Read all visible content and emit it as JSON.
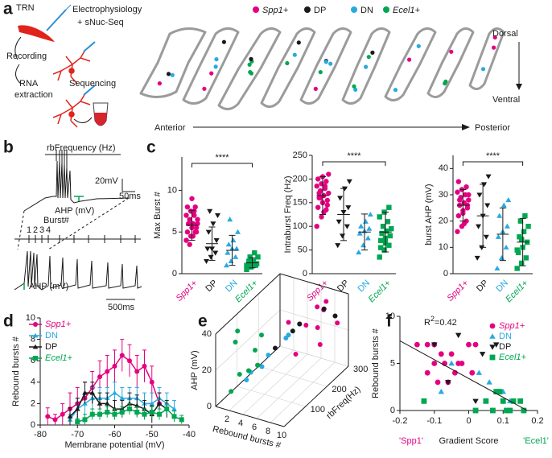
{
  "panel_labels": [
    "a",
    "b",
    "c",
    "d",
    "e",
    "f"
  ],
  "schematic": {
    "trn": "TRN",
    "ephys": "Electrophysiology",
    "snuc": "+ sNuc-Seq",
    "recording": "Recording",
    "rna": "RNA",
    "extraction": "extraction",
    "sequencing": "Sequencing"
  },
  "slices": {
    "legend": [
      {
        "name": "Spp1+",
        "color": "#e4007f",
        "italic": true
      },
      {
        "name": "DP",
        "color": "#1a1a1a",
        "italic": false
      },
      {
        "name": "DN",
        "color": "#29a9e1",
        "italic": false
      },
      {
        "name": "Ecel1+",
        "color": "#00a651",
        "italic": true
      }
    ],
    "dorsal": "Dorsal",
    "ventral": "Ventral",
    "anterior": "Anterior",
    "posterior": "Posterior"
  },
  "traces": {
    "rb_frequency": "rbFrequency (Hz)",
    "scale_mv": "20mV",
    "scale_ms": "50ms",
    "ahp_top": "AHP (mV)",
    "burst": "Burst#",
    "burst_numbers": [
      "1",
      "2",
      "3",
      "4"
    ],
    "ahp_bottom": "AHP (mV)",
    "scale_long": "500ms"
  },
  "chart_data": [
    {
      "type": "dotplot",
      "ylabel": "Max Burst #",
      "ylim": [
        0,
        14
      ],
      "yticks": [
        0,
        5,
        10
      ],
      "significance": "****",
      "series": [
        {
          "name": "Spp1+",
          "color": "#e4007f",
          "marker": "circle",
          "italic": true,
          "values": [
            4,
            4.5,
            5,
            5,
            5.5,
            5.5,
            6,
            6,
            6,
            6.5,
            7,
            7,
            7.5,
            8,
            8,
            9,
            5,
            6,
            4.5,
            6.5,
            3.5,
            7.5
          ],
          "mean": 5.8,
          "sd": 1.8
        },
        {
          "name": "DP",
          "color": "#1a1a1a",
          "marker": "triangle-down",
          "italic": false,
          "values": [
            1.5,
            2,
            2.5,
            3,
            3,
            4,
            5,
            6,
            7,
            7.5
          ],
          "mean": 3.6,
          "sd": 2
        },
        {
          "name": "DN",
          "color": "#29a9e1",
          "marker": "triangle-up",
          "italic": false,
          "values": [
            1,
            1.5,
            2,
            2.5,
            3,
            3,
            3.5,
            4,
            5,
            6.5
          ],
          "mean": 2.8,
          "sd": 1.8
        },
        {
          "name": "Ecel1+",
          "color": "#00a651",
          "marker": "square",
          "italic": true,
          "values": [
            0.5,
            0.8,
            1,
            1,
            1,
            1.2,
            1.5,
            1.5,
            2,
            2,
            2.5,
            1,
            1.3
          ],
          "mean": 1.3,
          "sd": 0.6
        }
      ]
    },
    {
      "type": "dotplot",
      "ylabel": "Intraburst Freq (Hz)",
      "ylim": [
        0,
        250
      ],
      "yticks": [
        0,
        50,
        100,
        150,
        200,
        250
      ],
      "significance": "****",
      "series": [
        {
          "name": "Spp1+",
          "color": "#e4007f",
          "marker": "circle",
          "italic": true,
          "values": [
            100,
            120,
            135,
            140,
            150,
            155,
            160,
            165,
            170,
            175,
            180,
            185,
            190,
            195,
            200,
            205,
            145,
            170,
            130,
            210,
            160,
            185
          ],
          "mean": 165,
          "sd": 40
        },
        {
          "name": "DP",
          "color": "#1a1a1a",
          "marker": "triangle-down",
          "italic": false,
          "values": [
            60,
            80,
            100,
            110,
            130,
            140,
            160,
            180,
            195
          ],
          "mean": 125,
          "sd": 55
        },
        {
          "name": "DN",
          "color": "#29a9e1",
          "marker": "triangle-up",
          "italic": false,
          "values": [
            45,
            60,
            75,
            85,
            90,
            95,
            100,
            110,
            125
          ],
          "mean": 88,
          "sd": 38
        },
        {
          "name": "Ecel1+",
          "color": "#00a651",
          "marker": "square",
          "italic": true,
          "values": [
            35,
            50,
            60,
            70,
            75,
            80,
            85,
            90,
            95,
            100,
            110,
            120,
            130,
            140,
            55,
            65
          ],
          "mean": 88,
          "sd": 42
        }
      ]
    },
    {
      "type": "dotplot",
      "ylabel": "burst AHP (mV)",
      "ylim": [
        0,
        45
      ],
      "yticks": [
        0,
        10,
        20,
        30,
        40
      ],
      "significance": "****",
      "series": [
        {
          "name": "Spp1+",
          "color": "#e4007f",
          "marker": "circle",
          "italic": true,
          "values": [
            16,
            18,
            20,
            22,
            24,
            25,
            26,
            27,
            28,
            29,
            30,
            31,
            32,
            33,
            35,
            23,
            26,
            28,
            19,
            30
          ],
          "mean": 26,
          "sd": 6
        },
        {
          "name": "DP",
          "color": "#1a1a1a",
          "marker": "triangle-down",
          "italic": false,
          "values": [
            6,
            10,
            14,
            18,
            22,
            26,
            30,
            34,
            37
          ],
          "mean": 22,
          "sd": 12
        },
        {
          "name": "DN",
          "color": "#29a9e1",
          "marker": "triangle-up",
          "italic": false,
          "values": [
            2,
            6,
            10,
            14,
            16,
            18,
            22,
            26,
            28
          ],
          "mean": 15,
          "sd": 10
        },
        {
          "name": "Ecel1+",
          "color": "#00a651",
          "marker": "square",
          "italic": true,
          "values": [
            2,
            4,
            6,
            8,
            10,
            12,
            14,
            16,
            18,
            20,
            22,
            9,
            13
          ],
          "mean": 12,
          "sd": 9
        }
      ]
    },
    {
      "type": "line",
      "xlabel": "Membrane potential (mV)",
      "ylabel": "Rebound bursts #",
      "x": [
        -78,
        -76,
        -74,
        -72,
        -70,
        -68,
        -66,
        -64,
        -62,
        -60,
        -58,
        -56,
        -54,
        -52,
        -50,
        -48,
        -46,
        -44,
        -42
      ],
      "xlim": [
        -80,
        -40
      ],
      "xticks": [
        -80,
        -70,
        -60,
        -50,
        -40
      ],
      "ylim": [
        0,
        10
      ],
      "yticks": [
        0,
        2,
        4,
        6,
        8,
        10
      ],
      "legend": "upper left",
      "series": [
        {
          "name": "Spp1+",
          "color": "#e4007f",
          "marker": "circle",
          "italic": true,
          "values": [
            0.8,
            0.5,
            1.0,
            1.5,
            2.0,
            2.5,
            3.5,
            4.5,
            5.0,
            5.5,
            6.5,
            6.0,
            5.0,
            5.5,
            4.0,
            2.0,
            null,
            null,
            null
          ],
          "errors": [
            0.8,
            0.5,
            1.0,
            1.5,
            1.5,
            1.5,
            1.5,
            1.5,
            1.5,
            1.5,
            1.5,
            1.5,
            1.5,
            1.5,
            1.5,
            1.0,
            null,
            null,
            null
          ]
        },
        {
          "name": "DN",
          "color": "#29a9e1",
          "marker": "triangle-up",
          "italic": false,
          "values": [
            null,
            null,
            null,
            0.5,
            1.5,
            2.0,
            2.5,
            2.5,
            2.5,
            3.0,
            2.5,
            2.5,
            2.5,
            2.0,
            2.0,
            2.5,
            2.0,
            1.5,
            null
          ],
          "errors": [
            null,
            null,
            null,
            0.5,
            1,
            1,
            1,
            1,
            1,
            1,
            1,
            1,
            1,
            1,
            1,
            1,
            1,
            0.8,
            null
          ]
        },
        {
          "name": "DP",
          "color": "#1a1a1a",
          "marker": "triangle-up",
          "italic": false,
          "values": [
            null,
            null,
            null,
            0.8,
            1.5,
            3.0,
            3.0,
            2.0,
            2.0,
            1.5,
            1.5,
            2.0,
            1.8,
            1.5,
            1.0,
            2.0,
            1.5,
            null,
            null
          ],
          "errors": [
            null,
            null,
            null,
            0.8,
            1,
            1,
            1,
            1,
            1,
            0.8,
            0.8,
            1,
            1,
            0.8,
            0.8,
            1,
            0.8,
            null,
            null
          ]
        },
        {
          "name": "Ecel1+",
          "color": "#00a651",
          "marker": "square",
          "italic": true,
          "values": [
            null,
            null,
            null,
            null,
            0.3,
            0.5,
            1.0,
            1.0,
            1.2,
            1.0,
            1.2,
            1.5,
            1.2,
            1.0,
            1.2,
            1.0,
            1.5,
            0.8,
            0.5
          ],
          "errors": [
            null,
            null,
            null,
            null,
            0.3,
            0.5,
            0.5,
            0.5,
            0.5,
            0.5,
            0.5,
            0.5,
            0.5,
            0.5,
            0.5,
            0.5,
            0.5,
            0.5,
            0.4
          ]
        }
      ]
    },
    {
      "type": "scatter3d",
      "xlabel": "Rebound bursts #",
      "ylabel": "rbFreq(Hz)",
      "zlabel": "AHP (mV)",
      "xlim": [
        0,
        10
      ],
      "xticks": [
        2,
        4,
        6,
        8,
        10
      ],
      "ylim": [
        0,
        300
      ],
      "yticks": [
        100,
        200,
        300
      ],
      "zlim": [
        0,
        40
      ],
      "zticks": [
        0,
        20,
        40
      ],
      "grid": true,
      "series": [
        {
          "name": "Spp1+",
          "color": "#e4007f",
          "x": [
            6,
            7,
            8,
            9,
            5,
            7,
            8,
            6,
            9,
            7
          ],
          "y": [
            200,
            250,
            220,
            280,
            180,
            150,
            260,
            230,
            200,
            280
          ],
          "z": [
            30,
            35,
            28,
            25,
            32,
            20,
            38,
            26,
            22,
            30
          ]
        },
        {
          "name": "DP",
          "color": "#1a1a1a",
          "x": [
            8,
            6,
            4,
            3,
            9,
            5
          ],
          "y": [
            250,
            200,
            150,
            100,
            270,
            200
          ],
          "z": [
            35,
            30,
            20,
            15,
            30,
            25
          ]
        },
        {
          "name": "DN",
          "color": "#29a9e1",
          "x": [
            3,
            2,
            4,
            5,
            2,
            3
          ],
          "y": [
            150,
            100,
            200,
            180,
            80,
            120
          ],
          "z": [
            15,
            10,
            20,
            25,
            8,
            12
          ]
        },
        {
          "name": "Ecel1+",
          "color": "#00a651",
          "x": [
            1,
            2,
            1,
            2,
            3,
            1,
            2,
            1
          ],
          "y": [
            80,
            120,
            60,
            150,
            100,
            40,
            90,
            70
          ],
          "z": [
            10,
            20,
            30,
            25,
            15,
            5,
            12,
            35
          ]
        }
      ]
    },
    {
      "type": "scatter",
      "xlabel": "Gradient Score",
      "ylabel": "Rebound bursts #",
      "x_end_labels": [
        {
          "text": "'Spp1'",
          "color": "#e4007f"
        },
        {
          "text": "'Ecel1'",
          "color": "#00a651"
        }
      ],
      "annotation": [
        "R",
        "2",
        "=0.42"
      ],
      "xlim": [
        -0.2,
        0.2
      ],
      "xticks": [
        -0.2,
        -0.1,
        0,
        0.1,
        0.2
      ],
      "ylim": [
        0,
        10
      ],
      "yticks": [
        0,
        5,
        10
      ],
      "legend": "upper right",
      "fit": {
        "x": [
          -0.2,
          0.17
        ],
        "y": [
          7.4,
          0
        ]
      },
      "series": [
        {
          "name": "Spp1+",
          "color": "#e4007f",
          "marker": "circle",
          "italic": true,
          "x": [
            -0.15,
            -0.12,
            -0.1,
            -0.08,
            -0.05,
            -0.02,
            0,
            0.02,
            -0.1,
            -0.07,
            -0.03,
            0.01,
            -0.12,
            -0.09,
            -0.06,
            -0.04
          ],
          "y": [
            7,
            7,
            7,
            6,
            6,
            5,
            7,
            7,
            5,
            5,
            5,
            4,
            4,
            3,
            3,
            4
          ]
        },
        {
          "name": "DN",
          "color": "#29a9e1",
          "marker": "triangle-up",
          "italic": false,
          "x": [
            -0.05,
            0.03,
            0.06,
            0.1,
            0.12,
            -0.08
          ],
          "y": [
            5,
            4,
            3,
            2,
            1,
            2
          ]
        },
        {
          "name": "DP",
          "color": "#1a1a1a",
          "marker": "triangle-down",
          "italic": false,
          "x": [
            -0.1,
            -0.03,
            0.04,
            0.08,
            0.1,
            -0.06,
            0.02
          ],
          "y": [
            7,
            8,
            6,
            7,
            1,
            3,
            1
          ]
        },
        {
          "name": "Ecel1+",
          "color": "#00a651",
          "marker": "square",
          "italic": true,
          "x": [
            -0.13,
            0.05,
            0.08,
            0.1,
            0.12,
            0.13,
            0.15,
            0.16,
            0.07,
            0.09,
            0.02,
            0.11
          ],
          "y": [
            1,
            1,
            2,
            1,
            0,
            1,
            1,
            0,
            0,
            2,
            0,
            0
          ]
        }
      ]
    }
  ]
}
